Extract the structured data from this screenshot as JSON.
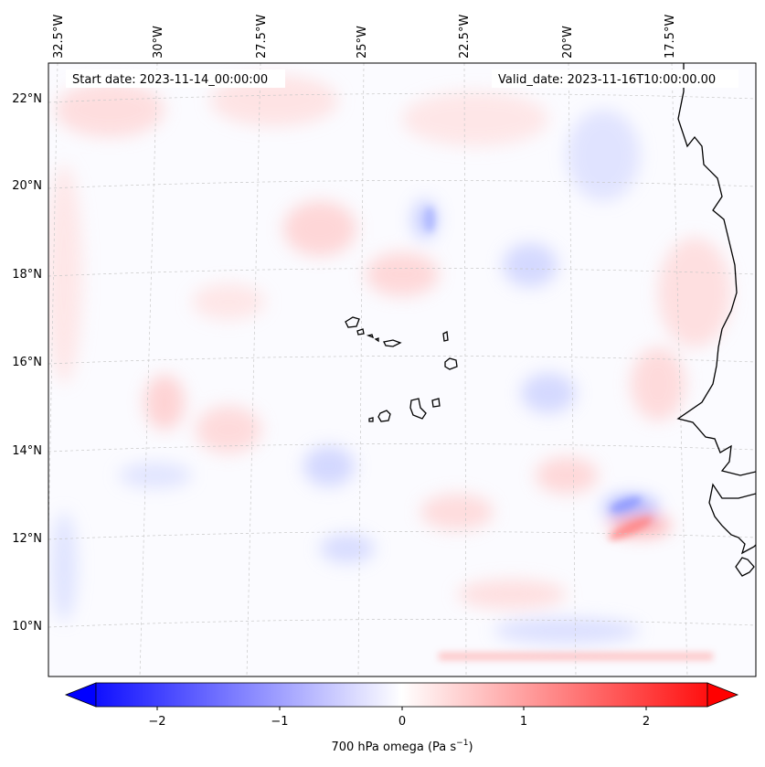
{
  "map": {
    "start_label": "Start date: 2023-11-14_00:00:00",
    "valid_label": "Valid_date: 2023-11-16T10:00:00.00",
    "lon_ticks": [
      "32.5°W",
      "30°W",
      "27.5°W",
      "25°W",
      "22.5°W",
      "20°W",
      "17.5°W"
    ],
    "lat_ticks": [
      "22°N",
      "20°N",
      "18°N",
      "16°N",
      "14°N",
      "12°N",
      "10°N"
    ],
    "colorbar": {
      "label": "700 hPa omega (Pa s",
      "label_exp": "−1",
      "label_close": ")",
      "ticks": [
        "−2",
        "−1",
        "0",
        "1",
        "2"
      ],
      "min_color": "#0000ff",
      "mid_color": "#ffffff",
      "max_color": "#ff0000"
    }
  }
}
